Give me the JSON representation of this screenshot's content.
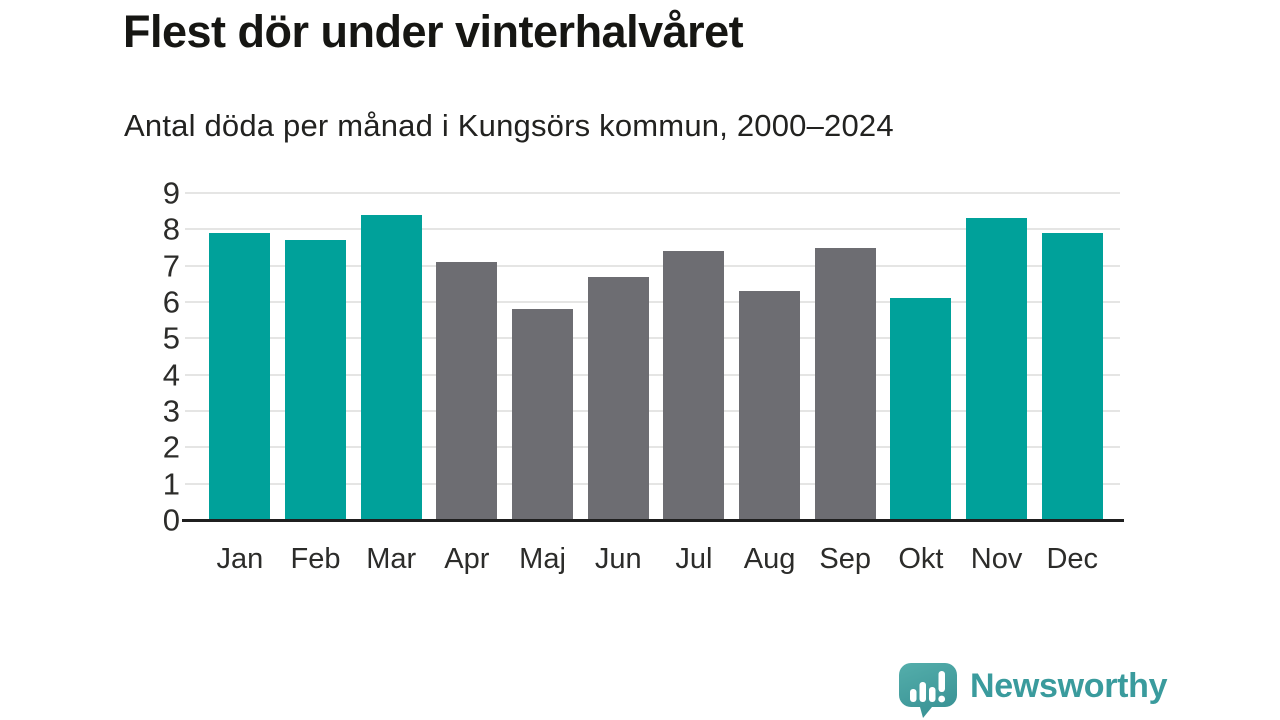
{
  "chart_data": {
    "type": "bar",
    "title": "Flest dör under vinterhalvåret",
    "subtitle": "Antal döda per månad i Kungsörs kommun, 2000–2024",
    "categories": [
      "Jan",
      "Feb",
      "Mar",
      "Apr",
      "Maj",
      "Jun",
      "Jul",
      "Aug",
      "Sep",
      "Okt",
      "Nov",
      "Dec"
    ],
    "values": [
      7.9,
      7.7,
      8.4,
      7.1,
      5.8,
      6.7,
      7.4,
      6.3,
      7.5,
      6.1,
      8.3,
      7.9
    ],
    "highlighted_categories": [
      "Jan",
      "Feb",
      "Mar",
      "Okt",
      "Nov",
      "Dec"
    ],
    "xlabel": "",
    "ylabel": "",
    "ylim": [
      0,
      9
    ],
    "yticks": [
      0,
      1,
      2,
      3,
      4,
      5,
      6,
      7,
      8,
      9
    ],
    "grid": true,
    "legend": false,
    "colors": {
      "highlight_bar": "#00a19a",
      "muted_bar": "#6d6d72",
      "gridline": "#e5e5e4",
      "axis_line": "#1f1f1f",
      "tick_text": "#2c2c2a"
    }
  },
  "branding": {
    "name": "Newsworthy",
    "logo_icon": "bar-chart-speech-bubble-icon",
    "brand_color": "#3a9b9d"
  }
}
